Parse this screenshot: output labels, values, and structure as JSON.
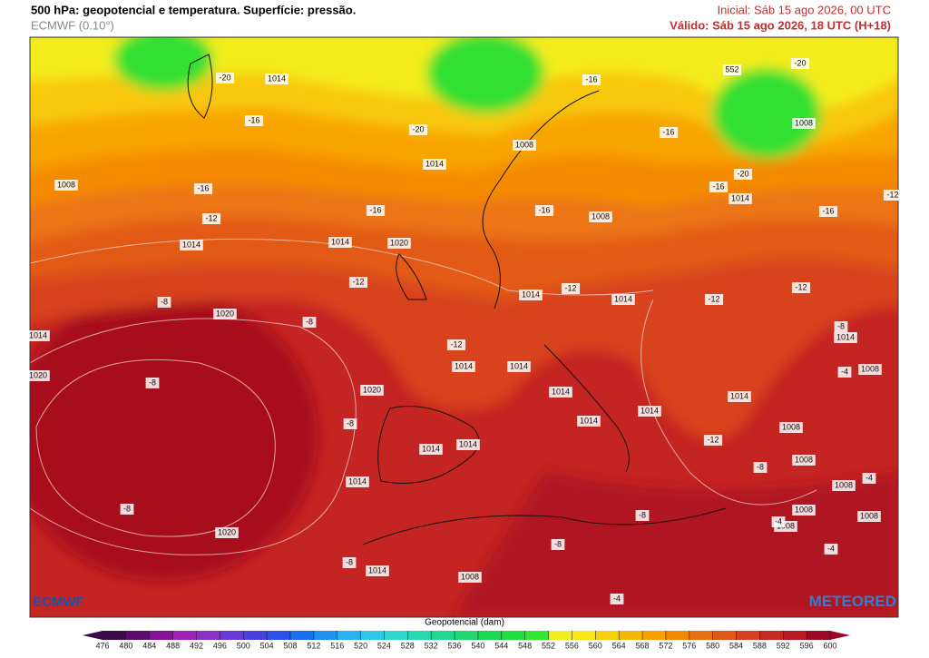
{
  "header": {
    "title": "500 hPa: geopotencial e temperatura. Superfície: pressão.",
    "model": "ECMWF (0.10°)",
    "initial": "Inicial: Sáb 15 ago 2026, 00 UTC",
    "valid": "Válido: Sáb 15 ago 2026, 18 UTC (H+18)"
  },
  "map": {
    "labels": [
      "1014",
      "-20",
      "-16",
      "-20",
      "1014",
      "1008",
      "-16",
      "-12",
      "1014",
      "1014",
      "1020",
      "-16",
      "-12",
      "-8",
      "1020",
      "-8",
      "1014",
      "-8",
      "1020",
      "1020",
      "-8",
      "1014",
      "1014",
      "1014",
      "-8",
      "1020",
      "-8",
      "1014",
      "1008",
      "-8",
      "-8",
      "-4",
      "-12",
      "1014",
      "1014",
      "1014",
      "1014",
      "1014",
      "-12",
      "1014",
      "1008",
      "1008",
      "-16",
      "-16",
      "-16",
      "-16",
      "1014",
      "-16",
      "-20",
      "1008",
      "552",
      "-20",
      "-12",
      "-12",
      "1014",
      "1014",
      "1008",
      "-12",
      "-8",
      "1008",
      "1008",
      "-4",
      "1008",
      "1008",
      "-4",
      "1008",
      "-4",
      "1014",
      "-8",
      "-4",
      "1008",
      "-12"
    ]
  },
  "logos": {
    "left": "ECMWF",
    "right": "METEORED"
  },
  "colorbar": {
    "title": "Geopotencial (dam)",
    "ticks": [
      476,
      480,
      484,
      488,
      492,
      496,
      500,
      504,
      508,
      512,
      516,
      520,
      524,
      528,
      532,
      536,
      540,
      544,
      548,
      552,
      556,
      560,
      564,
      568,
      572,
      576,
      580,
      584,
      588,
      592,
      596,
      600
    ],
    "colors": [
      "#3a0a4a",
      "#5e0a70",
      "#8a0f9a",
      "#a020b8",
      "#8b30c8",
      "#6a3ad8",
      "#4a40e0",
      "#2c50e8",
      "#1a6ef0",
      "#1e90f0",
      "#28b0f0",
      "#30c8e8",
      "#30d8d0",
      "#28d8b0",
      "#20d890",
      "#20d870",
      "#18d850",
      "#20e040",
      "#30e830",
      "#f0f020",
      "#f8e818",
      "#f8d010",
      "#f8b808",
      "#f8a000",
      "#f08800",
      "#e87010",
      "#e05818",
      "#d84020",
      "#c82820",
      "#b81820",
      "#a00828"
    ]
  }
}
